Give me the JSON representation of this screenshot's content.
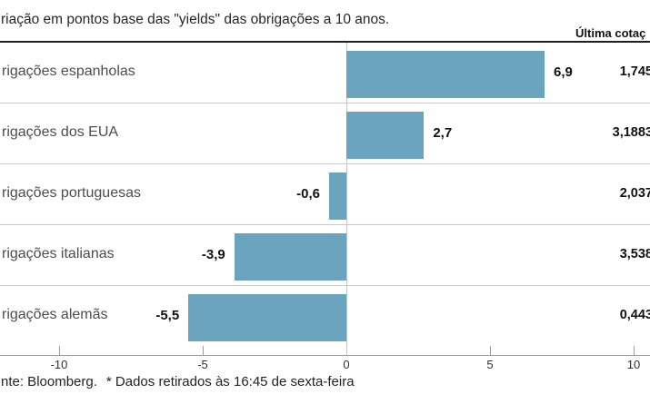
{
  "header": {
    "title": "riação em pontos base das \"yields\" das obrigações a 10 anos.",
    "last_quote_label": "Última cotaç"
  },
  "chart_data": {
    "type": "bar",
    "orientation": "horizontal",
    "title": "riação em pontos base das \"yields\" das obrigações a 10 anos.",
    "categories": [
      "rigações espanholas",
      "rigações dos EUA",
      "rigações portuguesas",
      "rigações italianas",
      "rigações alemãs"
    ],
    "values": [
      6.9,
      2.7,
      -0.6,
      -3.9,
      -5.5
    ],
    "value_labels": [
      "6,9",
      "2,7",
      "-0,6",
      "-3,9",
      "-5,5"
    ],
    "last_quotes": [
      "1,745",
      "3,1883",
      "2,037",
      "3,538",
      "0,443"
    ],
    "xlabel": "",
    "ylabel": "",
    "xlim": [
      -12,
      10.6
    ],
    "x_ticks": [
      -10,
      -5,
      0,
      5,
      10
    ],
    "x_tick_labels": [
      "-10",
      "-5",
      "0",
      "5",
      "10"
    ],
    "grid": false,
    "bar_color": "#6ba4be",
    "legend": null
  },
  "footer": {
    "source_note": "nte: Bloomberg.",
    "data_note": "* Dados retirados às 16:45 de sexta-feira"
  },
  "colors": {
    "bar": "#6ba4be",
    "header_rule": "#1f1f1f",
    "row_separator": "#c9c9c9",
    "axis": "#9a9a9a",
    "background": "#ffffff"
  }
}
